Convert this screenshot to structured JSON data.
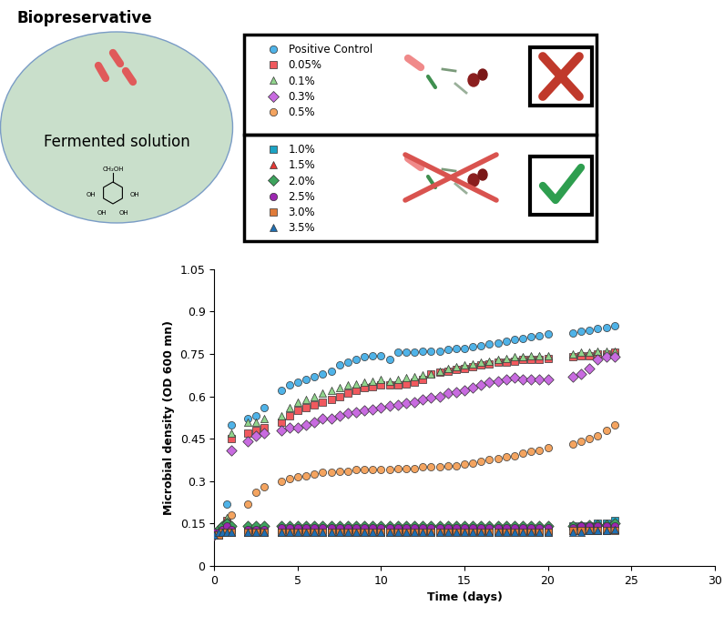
{
  "chart_data": {
    "type": "scatter",
    "title": "Biopreservative",
    "annotations": [
      "Fermented solution",
      "CH₂OH",
      "OH",
      "OH",
      "OH",
      "OH"
    ],
    "x_label": "Time (days)",
    "y_label": "Microbial density (OD 600 mn)",
    "xlim": [
      0,
      30
    ],
    "xticks": [
      0,
      5,
      10,
      15,
      20,
      25,
      30
    ],
    "ylim": [
      0,
      1.05
    ],
    "yticks": [
      0,
      0.15,
      0.3,
      0.45,
      0.6,
      0.75,
      0.9,
      1.05
    ],
    "grid": false,
    "legend": "upper left",
    "x": [
      0,
      0.25,
      0.5,
      0.75,
      1,
      2,
      2.5,
      3,
      4,
      4.5,
      5,
      5.5,
      6,
      6.5,
      7,
      7.5,
      8,
      8.5,
      9,
      9.5,
      10,
      10.5,
      11,
      11.5,
      12,
      12.5,
      13,
      13.5,
      14,
      14.5,
      15,
      15.5,
      16,
      16.5,
      17,
      17.5,
      18,
      18.5,
      19,
      19.5,
      20,
      21.5,
      22,
      22.5,
      23,
      23.5,
      24
    ],
    "series": [
      {
        "name": "Positive Control",
        "color": "#4fb3e8",
        "marker": "circle",
        "values": [
          0.11,
          0.12,
          0.14,
          0.22,
          0.5,
          0.52,
          0.53,
          0.56,
          0.62,
          0.64,
          0.65,
          0.66,
          0.67,
          0.68,
          0.69,
          0.71,
          0.72,
          0.73,
          0.74,
          0.745,
          0.745,
          0.73,
          0.755,
          0.755,
          0.755,
          0.76,
          0.76,
          0.76,
          0.765,
          0.77,
          0.77,
          0.775,
          0.78,
          0.785,
          0.79,
          0.795,
          0.8,
          0.805,
          0.81,
          0.815,
          0.82,
          0.825,
          0.83,
          0.835,
          0.84,
          0.845,
          0.85
        ]
      },
      {
        "name": "0.05%",
        "color": "#f0595e",
        "marker": "square",
        "values": [
          0.11,
          0.12,
          0.13,
          0.16,
          0.45,
          0.47,
          0.48,
          0.49,
          0.51,
          0.53,
          0.55,
          0.56,
          0.57,
          0.58,
          0.59,
          0.6,
          0.61,
          0.62,
          0.63,
          0.635,
          0.64,
          0.64,
          0.64,
          0.645,
          0.65,
          0.66,
          0.68,
          0.685,
          0.69,
          0.695,
          0.7,
          0.705,
          0.71,
          0.715,
          0.72,
          0.72,
          0.725,
          0.73,
          0.73,
          0.73,
          0.735,
          0.74,
          0.745,
          0.745,
          0.75,
          0.75,
          0.755
        ]
      },
      {
        "name": "0.1%",
        "color": "#90d48c",
        "marker": "triangle",
        "values": [
          0.11,
          0.12,
          0.14,
          0.17,
          0.47,
          0.51,
          0.51,
          0.52,
          0.53,
          0.56,
          0.58,
          0.59,
          0.6,
          0.61,
          0.62,
          0.63,
          0.64,
          0.645,
          0.65,
          0.655,
          0.66,
          0.655,
          0.66,
          0.665,
          0.67,
          0.675,
          0.68,
          0.69,
          0.7,
          0.705,
          0.71,
          0.715,
          0.72,
          0.725,
          0.73,
          0.735,
          0.74,
          0.74,
          0.745,
          0.745,
          0.745,
          0.75,
          0.755,
          0.755,
          0.76,
          0.76,
          0.76
        ]
      },
      {
        "name": "0.3%",
        "color": "#c86be0",
        "marker": "diamond",
        "values": [
          0.11,
          0.12,
          0.13,
          0.15,
          0.41,
          0.44,
          0.46,
          0.47,
          0.48,
          0.49,
          0.49,
          0.5,
          0.51,
          0.52,
          0.52,
          0.53,
          0.54,
          0.545,
          0.55,
          0.555,
          0.56,
          0.565,
          0.57,
          0.575,
          0.58,
          0.59,
          0.595,
          0.6,
          0.61,
          0.615,
          0.62,
          0.63,
          0.64,
          0.65,
          0.655,
          0.66,
          0.665,
          0.66,
          0.66,
          0.66,
          0.66,
          0.67,
          0.68,
          0.7,
          0.73,
          0.74,
          0.74
        ]
      },
      {
        "name": "0.5%",
        "color": "#f4a460",
        "marker": "circle",
        "values": [
          0.11,
          0.12,
          0.13,
          0.15,
          0.18,
          0.22,
          0.26,
          0.28,
          0.3,
          0.31,
          0.315,
          0.32,
          0.325,
          0.33,
          0.33,
          0.335,
          0.335,
          0.34,
          0.34,
          0.34,
          0.34,
          0.34,
          0.345,
          0.345,
          0.345,
          0.35,
          0.35,
          0.35,
          0.355,
          0.355,
          0.36,
          0.365,
          0.37,
          0.375,
          0.38,
          0.385,
          0.39,
          0.4,
          0.405,
          0.41,
          0.42,
          0.43,
          0.44,
          0.45,
          0.46,
          0.48,
          0.5
        ]
      },
      {
        "name": "1.0%",
        "color": "#1ca3c4",
        "marker": "square",
        "values": [
          0.12,
          0.12,
          0.13,
          0.13,
          0.13,
          0.13,
          0.13,
          0.13,
          0.13,
          0.13,
          0.13,
          0.13,
          0.13,
          0.13,
          0.13,
          0.13,
          0.13,
          0.13,
          0.13,
          0.13,
          0.13,
          0.13,
          0.13,
          0.13,
          0.13,
          0.13,
          0.13,
          0.13,
          0.13,
          0.13,
          0.13,
          0.13,
          0.13,
          0.13,
          0.13,
          0.13,
          0.13,
          0.13,
          0.13,
          0.13,
          0.13,
          0.14,
          0.14,
          0.14,
          0.15,
          0.15,
          0.16
        ]
      },
      {
        "name": "1.5%",
        "color": "#e53935",
        "marker": "triangle",
        "values": [
          0.11,
          0.11,
          0.12,
          0.12,
          0.12,
          0.12,
          0.12,
          0.12,
          0.12,
          0.12,
          0.12,
          0.12,
          0.12,
          0.12,
          0.12,
          0.12,
          0.12,
          0.12,
          0.12,
          0.12,
          0.12,
          0.12,
          0.12,
          0.12,
          0.125,
          0.125,
          0.125,
          0.125,
          0.125,
          0.125,
          0.125,
          0.125,
          0.125,
          0.125,
          0.125,
          0.125,
          0.125,
          0.125,
          0.125,
          0.125,
          0.125,
          0.125,
          0.125,
          0.13,
          0.13,
          0.13,
          0.13
        ]
      },
      {
        "name": "2.0%",
        "color": "#3da35d",
        "marker": "diamond",
        "values": [
          0.12,
          0.13,
          0.14,
          0.15,
          0.14,
          0.14,
          0.14,
          0.14,
          0.14,
          0.14,
          0.14,
          0.14,
          0.14,
          0.14,
          0.14,
          0.14,
          0.14,
          0.14,
          0.14,
          0.14,
          0.14,
          0.14,
          0.14,
          0.14,
          0.14,
          0.14,
          0.14,
          0.14,
          0.14,
          0.14,
          0.14,
          0.14,
          0.14,
          0.14,
          0.14,
          0.14,
          0.14,
          0.14,
          0.14,
          0.14,
          0.14,
          0.14,
          0.14,
          0.145,
          0.145,
          0.145,
          0.15
        ]
      },
      {
        "name": "2.5%",
        "color": "#9c27b0",
        "marker": "circle",
        "values": [
          0.12,
          0.12,
          0.13,
          0.14,
          0.13,
          0.13,
          0.13,
          0.13,
          0.135,
          0.135,
          0.135,
          0.135,
          0.135,
          0.135,
          0.135,
          0.135,
          0.135,
          0.135,
          0.135,
          0.135,
          0.135,
          0.135,
          0.135,
          0.135,
          0.135,
          0.135,
          0.135,
          0.135,
          0.135,
          0.135,
          0.135,
          0.135,
          0.135,
          0.135,
          0.135,
          0.135,
          0.135,
          0.135,
          0.135,
          0.135,
          0.135,
          0.135,
          0.14,
          0.14,
          0.14,
          0.14,
          0.14
        ]
      },
      {
        "name": "3.0%",
        "color": "#e07b39",
        "marker": "square",
        "values": [
          0.11,
          0.11,
          0.12,
          0.12,
          0.12,
          0.12,
          0.12,
          0.12,
          0.12,
          0.12,
          0.12,
          0.12,
          0.12,
          0.12,
          0.12,
          0.12,
          0.12,
          0.12,
          0.12,
          0.12,
          0.12,
          0.12,
          0.12,
          0.12,
          0.12,
          0.12,
          0.12,
          0.12,
          0.12,
          0.12,
          0.12,
          0.12,
          0.12,
          0.12,
          0.12,
          0.12,
          0.12,
          0.12,
          0.12,
          0.12,
          0.12,
          0.125,
          0.125,
          0.125,
          0.125,
          0.125,
          0.125
        ]
      },
      {
        "name": "3.5%",
        "color": "#1f6fb2",
        "marker": "triangle",
        "values": [
          0.11,
          0.12,
          0.12,
          0.12,
          0.12,
          0.12,
          0.12,
          0.12,
          0.12,
          0.12,
          0.12,
          0.12,
          0.12,
          0.12,
          0.12,
          0.12,
          0.12,
          0.12,
          0.12,
          0.12,
          0.12,
          0.12,
          0.12,
          0.12,
          0.12,
          0.12,
          0.12,
          0.12,
          0.12,
          0.12,
          0.12,
          0.12,
          0.12,
          0.12,
          0.12,
          0.12,
          0.12,
          0.12,
          0.12,
          0.12,
          0.12,
          0.12,
          0.12,
          0.125,
          0.125,
          0.125,
          0.13
        ]
      }
    ]
  }
}
